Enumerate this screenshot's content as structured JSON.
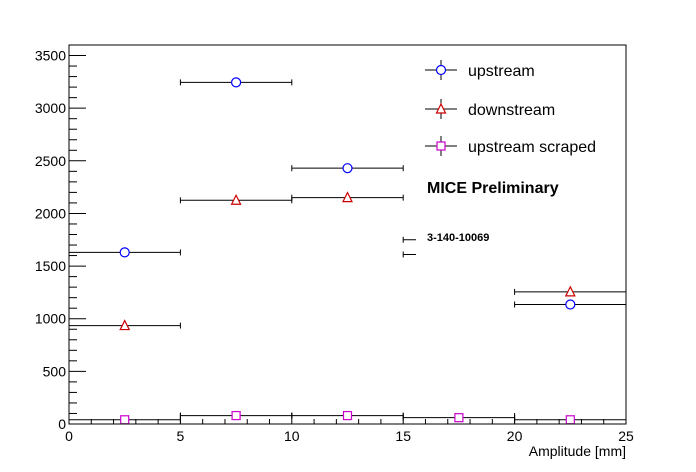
{
  "chart_data": {
    "type": "scatter",
    "xlabel": "Amplitude [mm]",
    "ylabel": "",
    "xlim": [
      0,
      25
    ],
    "ylim": [
      0,
      3600
    ],
    "xticks": [
      0,
      5,
      10,
      15,
      20,
      25
    ],
    "yticks": [
      0,
      500,
      1000,
      1500,
      2000,
      2500,
      3000,
      3500
    ],
    "grid": false,
    "legend_position": "top-right",
    "annotations": [
      "MICE Preliminary",
      "3-140-10069"
    ],
    "series": [
      {
        "name": "upstream",
        "marker": "circle",
        "color": "#0000ff",
        "points": [
          {
            "x": 2.5,
            "y": 1630,
            "xerr": 2.5
          },
          {
            "x": 7.5,
            "y": 3245,
            "xerr": 2.5
          },
          {
            "x": 12.5,
            "y": 2430,
            "xerr": 2.5
          },
          {
            "x": 17.5,
            "y": 1750,
            "xerr": 2.5
          },
          {
            "x": 22.5,
            "y": 1135,
            "xerr": 2.5
          }
        ]
      },
      {
        "name": "downstream",
        "marker": "triangle",
        "color": "#cc0000",
        "points": [
          {
            "x": 2.5,
            "y": 935,
            "xerr": 2.5
          },
          {
            "x": 7.5,
            "y": 2125,
            "xerr": 2.5
          },
          {
            "x": 12.5,
            "y": 2150,
            "xerr": 2.5
          },
          {
            "x": 17.5,
            "y": 1610,
            "xerr": 2.5
          },
          {
            "x": 22.5,
            "y": 1255,
            "xerr": 2.5
          }
        ]
      },
      {
        "name": "upstream scraped",
        "marker": "square",
        "color": "#cc00cc",
        "points": [
          {
            "x": 2.5,
            "y": 40,
            "xerr": 2.5
          },
          {
            "x": 7.5,
            "y": 80,
            "xerr": 2.5
          },
          {
            "x": 12.5,
            "y": 80,
            "xerr": 2.5
          },
          {
            "x": 17.5,
            "y": 60,
            "xerr": 2.5
          },
          {
            "x": 22.5,
            "y": 40,
            "xerr": 2.5
          }
        ]
      }
    ]
  }
}
